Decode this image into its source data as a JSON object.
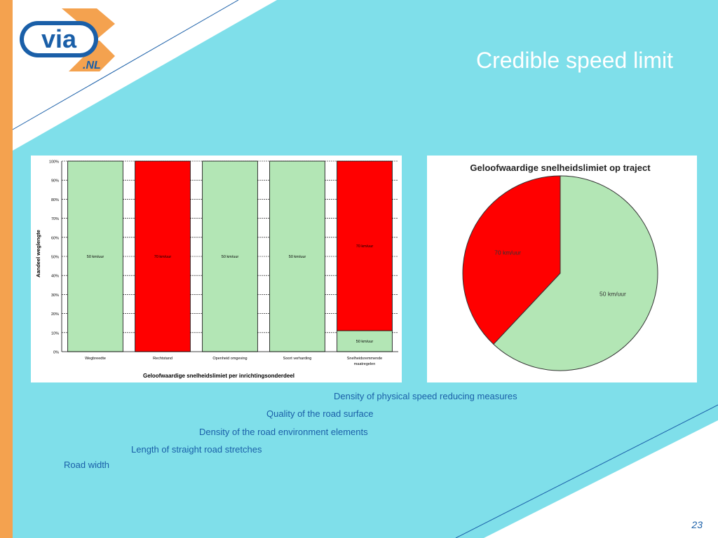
{
  "slide": {
    "title": "Credible speed limit",
    "page_number": "23",
    "logo_text": "via",
    "logo_subtext": ".NL",
    "captions": [
      "Density of physical speed reducing measures",
      "Quality of the road surface",
      "Density of the road environment elements",
      "Length of straight road stretches",
      "Road width"
    ]
  },
  "colors": {
    "background": "#7fdfea",
    "accent_orange": "#f4a24f",
    "green": "#b3e6b5",
    "red": "#ff0000",
    "caption_blue": "#1a5fa8"
  },
  "chart_data": [
    {
      "type": "bar",
      "stacked": true,
      "title": "",
      "xlabel": "Geloofwaardige snelheidslimiet per inrichtingsonderdeel",
      "ylabel": "Aandeel weglengte",
      "ylim": [
        0,
        100
      ],
      "yticks": [
        "0%",
        "10%",
        "20%",
        "30%",
        "40%",
        "50%",
        "60%",
        "70%",
        "80%",
        "90%",
        "100%"
      ],
      "grid": true,
      "categories": [
        {
          "label": "Wegbreedte"
        },
        {
          "label": "Rechtstand"
        },
        {
          "label": "Openheid omgeving"
        },
        {
          "label": "Soort verharding"
        },
        {
          "label": "Snelheidsremmende",
          "label2": "maatregelen"
        }
      ],
      "bars": [
        [
          {
            "name": "50 km/uur",
            "value": 100,
            "color": "#b3e6b5"
          }
        ],
        [
          {
            "name": "70 km/uur",
            "value": 100,
            "color": "#ff0000"
          }
        ],
        [
          {
            "name": "50 km/uur",
            "value": 100,
            "color": "#b3e6b5"
          }
        ],
        [
          {
            "name": "50 km/uur",
            "value": 100,
            "color": "#b3e6b5"
          }
        ],
        [
          {
            "name": "50 km/uur",
            "value": 11,
            "color": "#b3e6b5"
          },
          {
            "name": "70 km/uur",
            "value": 89,
            "color": "#ff0000"
          }
        ]
      ]
    },
    {
      "type": "pie",
      "title": "Geloofwaardige snelheidslimiet op traject",
      "slices": [
        {
          "label": "50 km/uur",
          "value": 62,
          "color": "#b3e6b5"
        },
        {
          "label": "70 km/uur",
          "value": 38,
          "color": "#ff0000"
        }
      ]
    }
  ]
}
